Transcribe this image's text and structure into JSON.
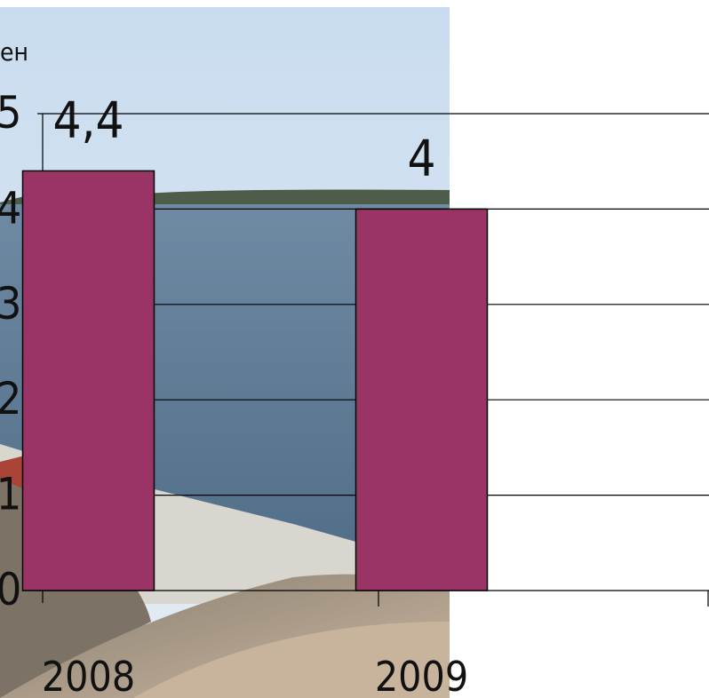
{
  "chart_data": {
    "type": "bar",
    "title": "",
    "unit_label": "ен",
    "categories": [
      "2008",
      "2009"
    ],
    "values": [
      4.4,
      4
    ],
    "value_labels": [
      "4,4",
      "4"
    ],
    "y_tick_labels": [
      "0",
      "1",
      "2",
      "3",
      "4",
      "5"
    ],
    "ylim": [
      0,
      5
    ],
    "grid": true,
    "legend": "none",
    "bar_color": "#9b3466",
    "gridline_color": "#000000"
  }
}
